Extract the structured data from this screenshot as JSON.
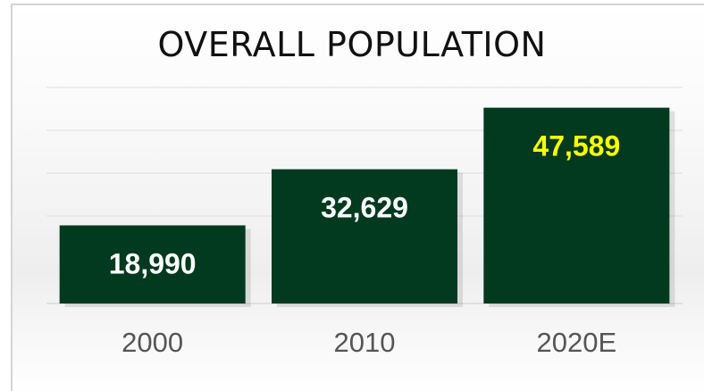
{
  "chart_data": {
    "type": "bar",
    "title": "OVERALL POPULATION",
    "categories": [
      "2000",
      "2010",
      "2020E"
    ],
    "values": [
      18990,
      32629,
      47589
    ],
    "value_labels": [
      "18,990",
      "32,629",
      "47,589"
    ],
    "xlabel": "",
    "ylabel": "",
    "ylim": [
      0,
      50000
    ],
    "grid": true,
    "legend": "none",
    "colors": {
      "bar": "#013a1e",
      "label_default": "#ffffff",
      "label_highlight": "#ffff00",
      "tick": "#555555",
      "grid": "#dddddd"
    },
    "highlight_index": 2
  }
}
